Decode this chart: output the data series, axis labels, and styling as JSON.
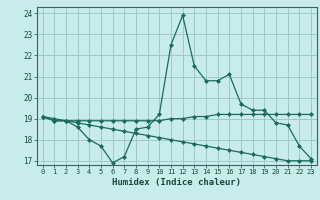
{
  "title": "",
  "xlabel": "Humidex (Indice chaleur)",
  "ylabel": "",
  "background_color": "#c8ecec",
  "grid_color": "#a0c8c8",
  "line_color": "#1a6b5a",
  "xlim": [
    -0.5,
    23.5
  ],
  "ylim": [
    16.8,
    24.3
  ],
  "yticks": [
    17,
    18,
    19,
    20,
    21,
    22,
    23,
    24
  ],
  "xticks": [
    0,
    1,
    2,
    3,
    4,
    5,
    6,
    7,
    8,
    9,
    10,
    11,
    12,
    13,
    14,
    15,
    16,
    17,
    18,
    19,
    20,
    21,
    22,
    23
  ],
  "series": [
    [
      19.1,
      18.9,
      18.9,
      18.6,
      18.0,
      17.7,
      16.9,
      17.2,
      18.5,
      18.6,
      19.2,
      22.5,
      23.9,
      21.5,
      20.8,
      20.8,
      21.1,
      19.7,
      19.4,
      19.4,
      18.8,
      18.7,
      17.7,
      17.1
    ],
    [
      19.1,
      18.9,
      18.9,
      18.9,
      18.9,
      18.9,
      18.9,
      18.9,
      18.9,
      18.9,
      18.9,
      19.0,
      19.0,
      19.1,
      19.1,
      19.2,
      19.2,
      19.2,
      19.2,
      19.2,
      19.2,
      19.2,
      19.2,
      19.2
    ],
    [
      19.1,
      19.0,
      18.9,
      18.8,
      18.7,
      18.6,
      18.5,
      18.4,
      18.3,
      18.2,
      18.1,
      18.0,
      17.9,
      17.8,
      17.7,
      17.6,
      17.5,
      17.4,
      17.3,
      17.2,
      17.1,
      17.0,
      17.0,
      17.0
    ]
  ]
}
